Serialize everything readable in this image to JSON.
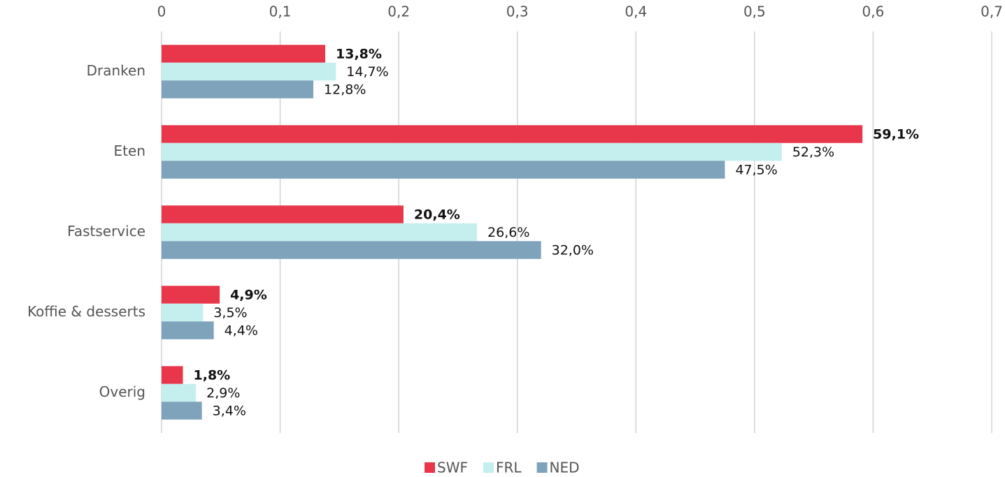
{
  "chart_data": {
    "type": "barh",
    "categories": [
      "Dranken",
      "Eten",
      "Fastservice",
      "Koffie & desserts",
      "Overig"
    ],
    "series": [
      {
        "name": "SWF",
        "color": "#e8374a",
        "values": [
          0.138,
          0.591,
          0.204,
          0.049,
          0.018
        ],
        "value_labels": [
          "13,8%",
          "59,1%",
          "20,4%",
          "4,9%",
          "1,8%"
        ]
      },
      {
        "name": "FRL",
        "color": "#c5eeee",
        "values": [
          0.147,
          0.523,
          0.266,
          0.035,
          0.029
        ],
        "value_labels": [
          "14,7%",
          "52,3%",
          "26,6%",
          "3,5%",
          "2,9%"
        ]
      },
      {
        "name": "NED",
        "color": "#7fa3bb",
        "values": [
          0.128,
          0.475,
          0.32,
          0.044,
          0.034
        ],
        "value_labels": [
          "12,8%",
          "47,5%",
          "32,0%",
          "4,4%",
          "3,4%"
        ]
      }
    ],
    "xlim": [
      0,
      0.7
    ],
    "xticks": [
      0,
      {
        "value": 0.1,
        "label": "0,1"
      },
      {
        "value": 0.2,
        "label": "0,2"
      },
      {
        "value": 0.3,
        "label": "0,3"
      },
      {
        "value": 0.4,
        "label": "0,4"
      },
      {
        "value": 0.5,
        "label": "0,5"
      },
      {
        "value": 0.6,
        "label": "0,6"
      },
      {
        "value": 0.7,
        "label": "0,7"
      }
    ],
    "grid": true,
    "legend": "bottom"
  }
}
